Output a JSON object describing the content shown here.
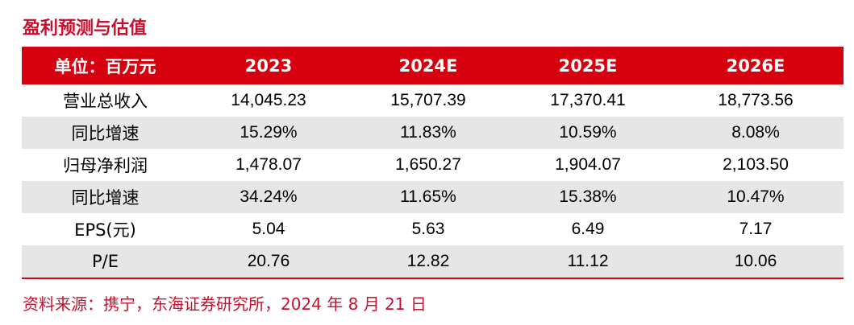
{
  "title": "盈利预测与估值",
  "table": {
    "headers": [
      "单位：百万元",
      "2023",
      "2024E",
      "2025E",
      "2026E"
    ],
    "rows": [
      {
        "label": "营业总收入",
        "values": [
          "14,045.23",
          "15,707.39",
          "17,370.41",
          "18,773.56"
        ]
      },
      {
        "label": "同比增速",
        "values": [
          "15.29%",
          "11.83%",
          "10.59%",
          "8.08%"
        ]
      },
      {
        "label": "归母净利润",
        "values": [
          "1,478.07",
          "1,650.27",
          "1,904.07",
          "2,103.50"
        ]
      },
      {
        "label": "同比增速",
        "values": [
          "34.24%",
          "11.65%",
          "15.38%",
          "10.47%"
        ]
      },
      {
        "label": "EPS(元)",
        "values": [
          "5.04",
          "5.63",
          "6.49",
          "7.17"
        ]
      },
      {
        "label": "P/E",
        "values": [
          "20.76",
          "12.82",
          "11.12",
          "10.06"
        ]
      }
    ]
  },
  "source": "资料来源：携宁，东海证券研究所，2024 年 8 月 21 日",
  "colors": {
    "header_bg": "#d7000f",
    "title_text": "#c8102e",
    "shaded_row": "#e6e6e6"
  }
}
